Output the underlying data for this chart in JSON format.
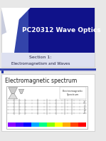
{
  "title_text": "PC20312 Wave Optics",
  "subtitle_line1": "Section 1:",
  "subtitle_line2": "Electromagnetism and Waves",
  "slide2_title": "Electromagnetic spectrum",
  "bg_color": "#e8e8e8",
  "slide1_bg": "#10128a",
  "slide2_bg": "#ffffff",
  "title_color": "#ffffff",
  "accent_blue": "#3a4aaa",
  "accent_light": "#aab0dd",
  "divider_color_dark": "#2233aa",
  "divider_color_light": "#aaaacc",
  "slide2_title_color": "#222222",
  "spectrum_colors": [
    "#8800ff",
    "#4400ff",
    "#0000ff",
    "#00aaff",
    "#00ff88",
    "#88ff00",
    "#ffff00",
    "#ffaa00",
    "#ff4400",
    "#ff0000"
  ]
}
